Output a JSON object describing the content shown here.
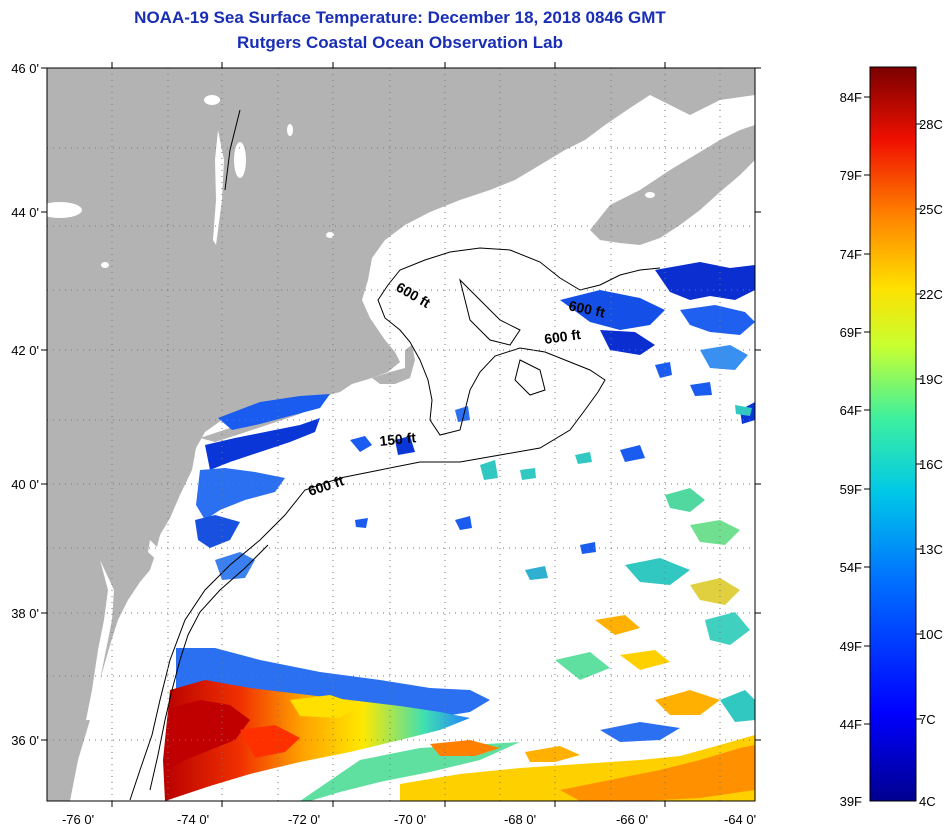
{
  "header": {
    "title": "NOAA-19 Sea Surface Temperature:  December 18, 2018 0846 GMT",
    "subtitle": "Rutgers Coastal Ocean Observation Lab"
  },
  "map": {
    "lat_labels": [
      "46 0'",
      "44 0'",
      "42 0'",
      "40 0'",
      "38 0'",
      "36 0'"
    ],
    "lon_labels": [
      "-76 0'",
      "-74 0'",
      "-72 0'",
      "-70 0'",
      "-68 0'",
      "-66 0'",
      "-64 0'"
    ],
    "contour_labels": [
      "600 ft",
      "600 ft",
      "600 ft",
      "150 ft",
      "600 ft"
    ],
    "land_color": "#b3b3b3",
    "no_data_color": "#ffffff"
  },
  "colorbar": {
    "fahrenheit": [
      "84F",
      "79F",
      "74F",
      "69F",
      "64F",
      "59F",
      "54F",
      "49F",
      "44F",
      "39F"
    ],
    "celsius": [
      "28C",
      "25C",
      "22C",
      "19C",
      "16C",
      "13C",
      "10C",
      "7C",
      "4C"
    ]
  }
}
